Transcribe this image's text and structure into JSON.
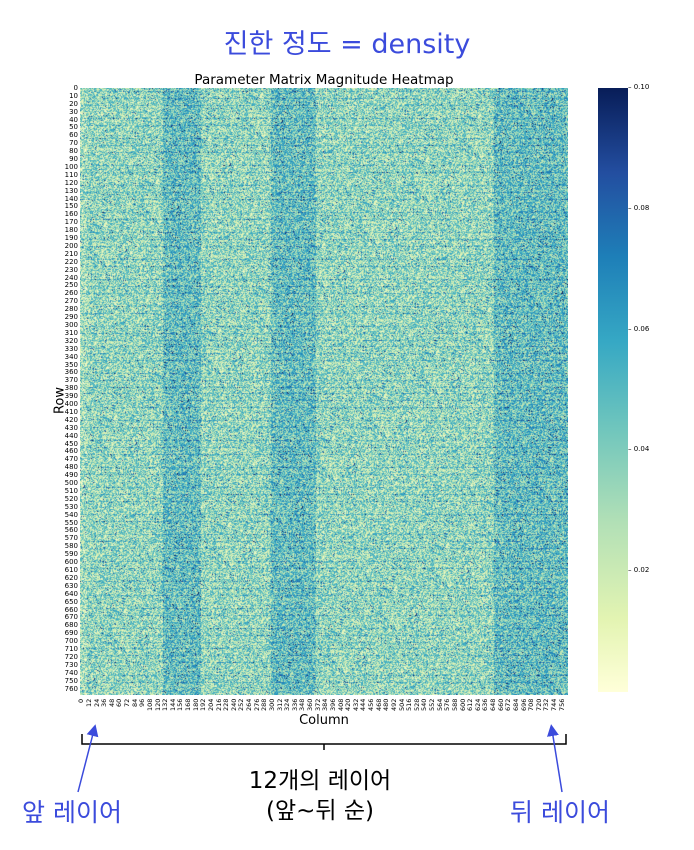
{
  "annotations": {
    "top_caption": "진한 정도 = density",
    "bottom_label_line1": "12개의 레이어",
    "bottom_label_line2": "(앞~뒤 순)",
    "front_label": "앞 레이어",
    "back_label": "뒤 레이어",
    "accent_color": "#3b4bdc"
  },
  "chart_data": {
    "type": "heatmap",
    "title": "Parameter Matrix Magnitude Heatmap",
    "xlabel": "Column",
    "ylabel": "Row",
    "rows": 768,
    "columns": 768,
    "y_ticks": [
      "0",
      "10",
      "20",
      "30",
      "40",
      "50",
      "60",
      "70",
      "80",
      "90",
      "100",
      "110",
      "120",
      "130",
      "140",
      "150",
      "160",
      "170",
      "180",
      "190",
      "200",
      "210",
      "220",
      "230",
      "240",
      "250",
      "260",
      "270",
      "280",
      "290",
      "300",
      "310",
      "320",
      "330",
      "340",
      "350",
      "360",
      "370",
      "380",
      "390",
      "400",
      "410",
      "420",
      "430",
      "440",
      "450",
      "460",
      "470",
      "480",
      "490",
      "500",
      "510",
      "520",
      "530",
      "540",
      "550",
      "560",
      "570",
      "580",
      "590",
      "600",
      "610",
      "620",
      "630",
      "640",
      "650",
      "660",
      "670",
      "680",
      "690",
      "700",
      "710",
      "720",
      "730",
      "740",
      "750",
      "760"
    ],
    "x_ticks": [
      "0",
      "12",
      "24",
      "36",
      "48",
      "60",
      "72",
      "84",
      "96",
      "108",
      "120",
      "132",
      "144",
      "156",
      "168",
      "180",
      "192",
      "204",
      "216",
      "228",
      "240",
      "252",
      "264",
      "276",
      "288",
      "300",
      "312",
      "324",
      "336",
      "348",
      "360",
      "372",
      "384",
      "396",
      "408",
      "420",
      "432",
      "444",
      "456",
      "468",
      "480",
      "492",
      "504",
      "516",
      "528",
      "540",
      "552",
      "564",
      "576",
      "588",
      "600",
      "612",
      "624",
      "636",
      "648",
      "660",
      "672",
      "684",
      "696",
      "708",
      "720",
      "732",
      "744",
      "756"
    ],
    "colorbar": {
      "colormap": "YlGnBu",
      "ticks": [
        "0.02",
        "0.04",
        "0.06",
        "0.08",
        "0.10"
      ],
      "range": [
        0,
        0.1
      ]
    },
    "dense_column_bands": [
      [
        130,
        190
      ],
      [
        300,
        370
      ],
      [
        650,
        768
      ]
    ]
  }
}
